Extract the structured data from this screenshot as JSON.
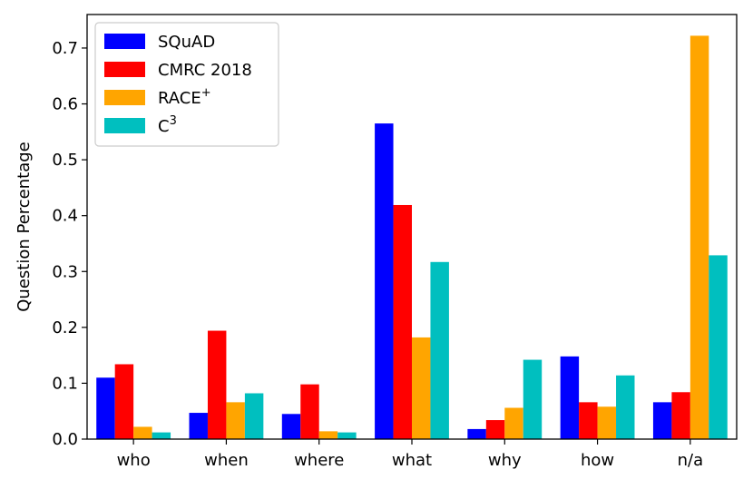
{
  "chart_data": {
    "type": "bar",
    "title": "",
    "xlabel": "",
    "ylabel": "Question Percentage",
    "categories": [
      "who",
      "when",
      "where",
      "what",
      "why",
      "how",
      "n/a"
    ],
    "ylim": [
      0,
      0.76
    ],
    "yticks": [
      "0.0",
      "0.1",
      "0.2",
      "0.3",
      "0.4",
      "0.5",
      "0.6",
      "0.7"
    ],
    "ytick_values": [
      0.0,
      0.1,
      0.2,
      0.3,
      0.4,
      0.5,
      0.6,
      0.7
    ],
    "grid": false,
    "legend_position": "top-left",
    "series": [
      {
        "name": "SQuAD",
        "legend_base": "SQuAD",
        "legend_sup": "",
        "color": "#0000ff",
        "values": [
          0.11,
          0.047,
          0.045,
          0.565,
          0.018,
          0.148,
          0.066
        ]
      },
      {
        "name": "CMRC 2018",
        "legend_base": "CMRC 2018",
        "legend_sup": "",
        "color": "#ff0000",
        "values": [
          0.134,
          0.194,
          0.098,
          0.419,
          0.034,
          0.066,
          0.084
        ]
      },
      {
        "name": "RACE+",
        "legend_base": "RACE",
        "legend_sup": "+",
        "color": "#ffa500",
        "values": [
          0.022,
          0.066,
          0.014,
          0.182,
          0.056,
          0.058,
          0.722
        ]
      },
      {
        "name": "C3",
        "legend_base": "C",
        "legend_sup": "3",
        "color": "#00bfbf",
        "values": [
          0.012,
          0.082,
          0.012,
          0.317,
          0.142,
          0.114,
          0.329
        ]
      }
    ]
  }
}
